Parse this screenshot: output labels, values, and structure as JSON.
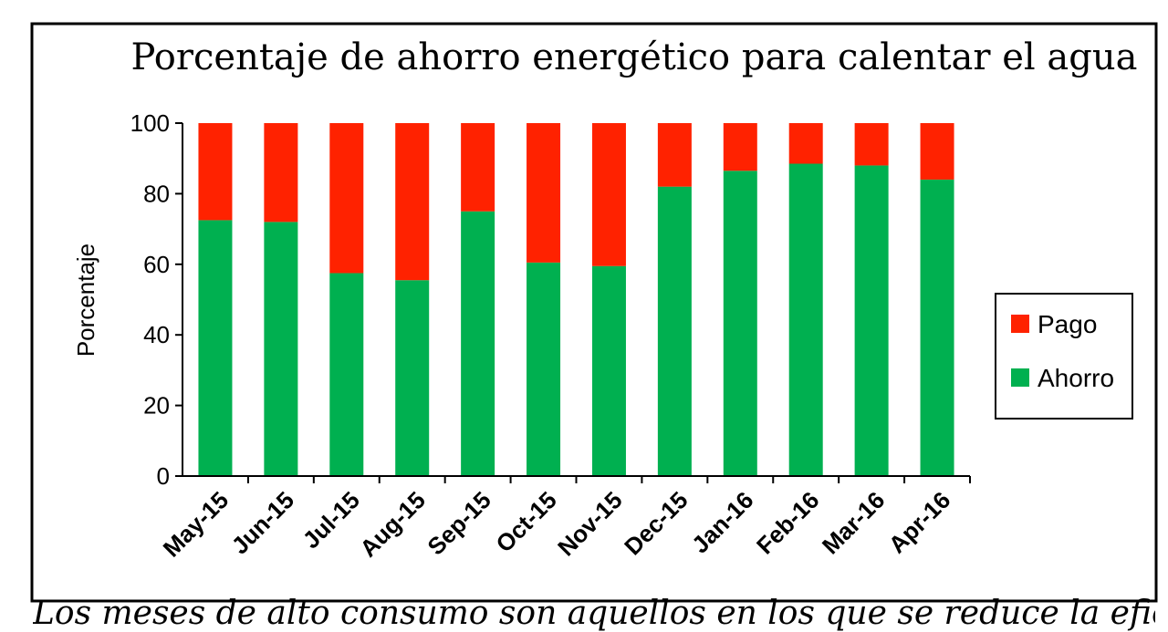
{
  "chart_data": {
    "type": "bar",
    "stacked": true,
    "title": "Porcentaje de ahorro energético para calentar el agua",
    "ylabel": "Porcentaje",
    "xlabel": "",
    "ylim": [
      0,
      100
    ],
    "yticks": [
      0,
      20,
      40,
      60,
      80,
      100
    ],
    "grid": false,
    "legend_position": "right",
    "categories": [
      "May-15",
      "Jun-15",
      "Jul-15",
      "Aug-15",
      "Sep-15",
      "Oct-15",
      "Nov-15",
      "Dec-15",
      "Jan-16",
      "Feb-16",
      "Mar-16",
      "Apr-16"
    ],
    "series": [
      {
        "name": "Ahorro",
        "color": "#00b050",
        "values": [
          72.5,
          72,
          57.5,
          55.5,
          75,
          60.5,
          59.5,
          82,
          86.5,
          88.5,
          88,
          84
        ]
      },
      {
        "name": "Pago",
        "color": "#ff2200",
        "values": [
          27.5,
          28,
          42.5,
          44.5,
          25,
          39.5,
          40.5,
          18,
          13.5,
          11.5,
          12,
          16
        ]
      }
    ],
    "legend": [
      {
        "label": "Pago",
        "color": "#ff2200"
      },
      {
        "label": "Ahorro",
        "color": "#00b050"
      }
    ]
  },
  "caption": "Los meses de alto consumo son aquellos en los que se reduce la eficiencia del sistema solar"
}
